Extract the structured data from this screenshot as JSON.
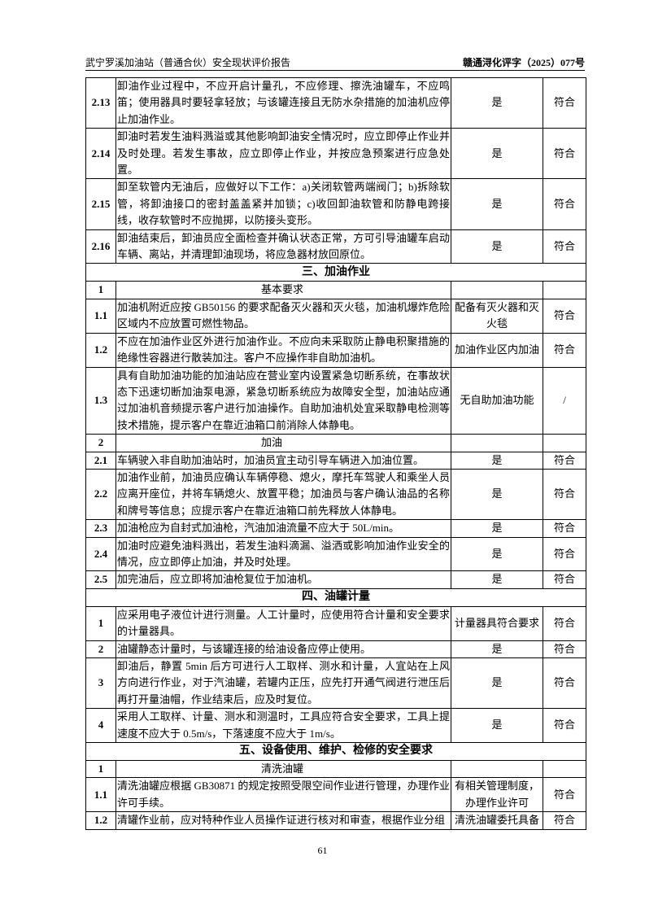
{
  "header": {
    "left": "武宁罗溪加油站（普通合伙）安全现状评价报告",
    "right": "赣通浔化评字（2025）077号"
  },
  "table": {
    "rows": [
      {
        "no": "2.13",
        "content": "卸油作业过程中，不应开启计量孔，不应修理、擦洗油罐车，不应鸣笛；使用器具时要轻拿轻放；与该罐连接且无防水杂措施的加油机应停止加油作业。",
        "result": "是",
        "conclusion": "符合"
      },
      {
        "no": "2.14",
        "content": "卸油时若发生油料溅溢或其他影响卸油安全情况时，应立即停止作业并及时处理。若发生事故，应立即停止作业，并按应急预案进行应急处置。",
        "result": "是",
        "conclusion": "符合"
      },
      {
        "no": "2.15",
        "content": "卸至软管内无油后，应做好以下工作：a)关闭软管两端阀门；b)拆除软管，将卸油接口的密封盖盖紧并加锁；c)收回卸油软管和防静电跨接线，收存软管时不应抛掷，以防接头变形。",
        "result": "是",
        "conclusion": "符合"
      },
      {
        "no": "2.16",
        "content": "卸油结束后，卸油员应全面检查并确认状态正常，方可引导油罐车启动车辆、离站，并清理卸油现场，将应急器材放回原位。",
        "result": "是",
        "conclusion": "符合"
      },
      {
        "section": "三、加油作业"
      },
      {
        "no": "1",
        "title": "基本要求"
      },
      {
        "no": "1.1",
        "content": "加油机附近应按 GB50156 的要求配备灭火器和灭火毯，加油机爆炸危险区域内不应放置可燃性物品。",
        "result": "配备有灭火器和灭火毯",
        "conclusion": "符合"
      },
      {
        "no": "1.2",
        "content": "不应在加油作业区外进行加油作业。不应向未采取防止静电积聚措施的绝缘性容器进行散装加注。客户不应操作非自助加油机。",
        "result": "加油作业区内加油",
        "conclusion": "符合"
      },
      {
        "no": "1.3",
        "content": "具有自助加油功能的加油站应在营业室内设置紧急切断系统，在事故状态下迅速切断加油泵电源，紧急切断系统应为故障安全型，加油站应通过加油机音频提示客户进行加油操作。自助加油机处宜采取静电检测等技术措施，提示客户在靠近油箱口前消除人体静电。",
        "result": "无自助加油功能",
        "conclusion": "/"
      },
      {
        "no": "2",
        "title": "加油"
      },
      {
        "no": "2.1",
        "content": "车辆驶入非自助加油站时，加油员宜主动引导车辆进入加油位置。",
        "result": "是",
        "conclusion": "符合"
      },
      {
        "no": "2.2",
        "content": "加油作业前，加油员应确认车辆停稳、熄火，摩托车驾驶人和乘坐人员应离开座位，并将车辆熄火、放置平稳；加油员与客户确认油品的名称和牌号等信息；应提示客户在靠近油箱口前先释放人体静电。",
        "result": "是",
        "conclusion": "符合"
      },
      {
        "no": "2.3",
        "content": "加油枪应为自封式加油枪，汽油加油流量不应大于 50L/min。",
        "result": "是",
        "conclusion": "符合"
      },
      {
        "no": "2.4",
        "content": "加油时应避免油料溅出，若发生油料滴漏、溢洒或影响加油作业安全的情况，应立即停止加油，并及时处理。",
        "result": "是",
        "conclusion": "符合"
      },
      {
        "no": "2.5",
        "content": "加完油后，应立即将加油枪复位于加油机。",
        "result": "是",
        "conclusion": "符合"
      },
      {
        "section": "四、油罐计量"
      },
      {
        "no": "1",
        "content": "应采用电子液位计进行测量。人工计量时，应使用符合计量和安全要求的计量器具。",
        "result": "计量器具符合要求",
        "conclusion": "符合"
      },
      {
        "no": "2",
        "content": "油罐静态计量时，与该罐连接的给油设备应停止使用。",
        "result": "是",
        "conclusion": "符合"
      },
      {
        "no": "3",
        "content": "卸油后，静置 5min 后方可进行人工取样、测水和计量，人宜站在上风方向进行作业，对于汽油罐，若罐内正压，应先打开通气阀进行泄压后再打开量油帽，作业结束后，应及时复位。",
        "result": "是",
        "conclusion": "符合"
      },
      {
        "no": "4",
        "content": "采用人工取样、计量、测水和测温时，工具应符合安全要求，工具上提速度不应大于 0.5m/s，下落速度不应大于 1m/s。",
        "result": "是",
        "conclusion": "符合"
      },
      {
        "section": "五、设备使用、维护、检修的安全要求"
      },
      {
        "no": "1",
        "title": "清洗油罐"
      },
      {
        "no": "1.1",
        "content": "清洗油罐应根据 GB30871 的规定按照受限空间作业进行管理，办理作业许可手续。",
        "result": "有相关管理制度，办理作业许可",
        "conclusion": "符合"
      },
      {
        "no": "1.2",
        "content": "清罐作业前，应对特种作业人员操作证进行核对和审查，根据作业分组",
        "result": "清洗油罐委托具备",
        "conclusion": "符合"
      }
    ]
  },
  "footer": {
    "page": "61"
  }
}
